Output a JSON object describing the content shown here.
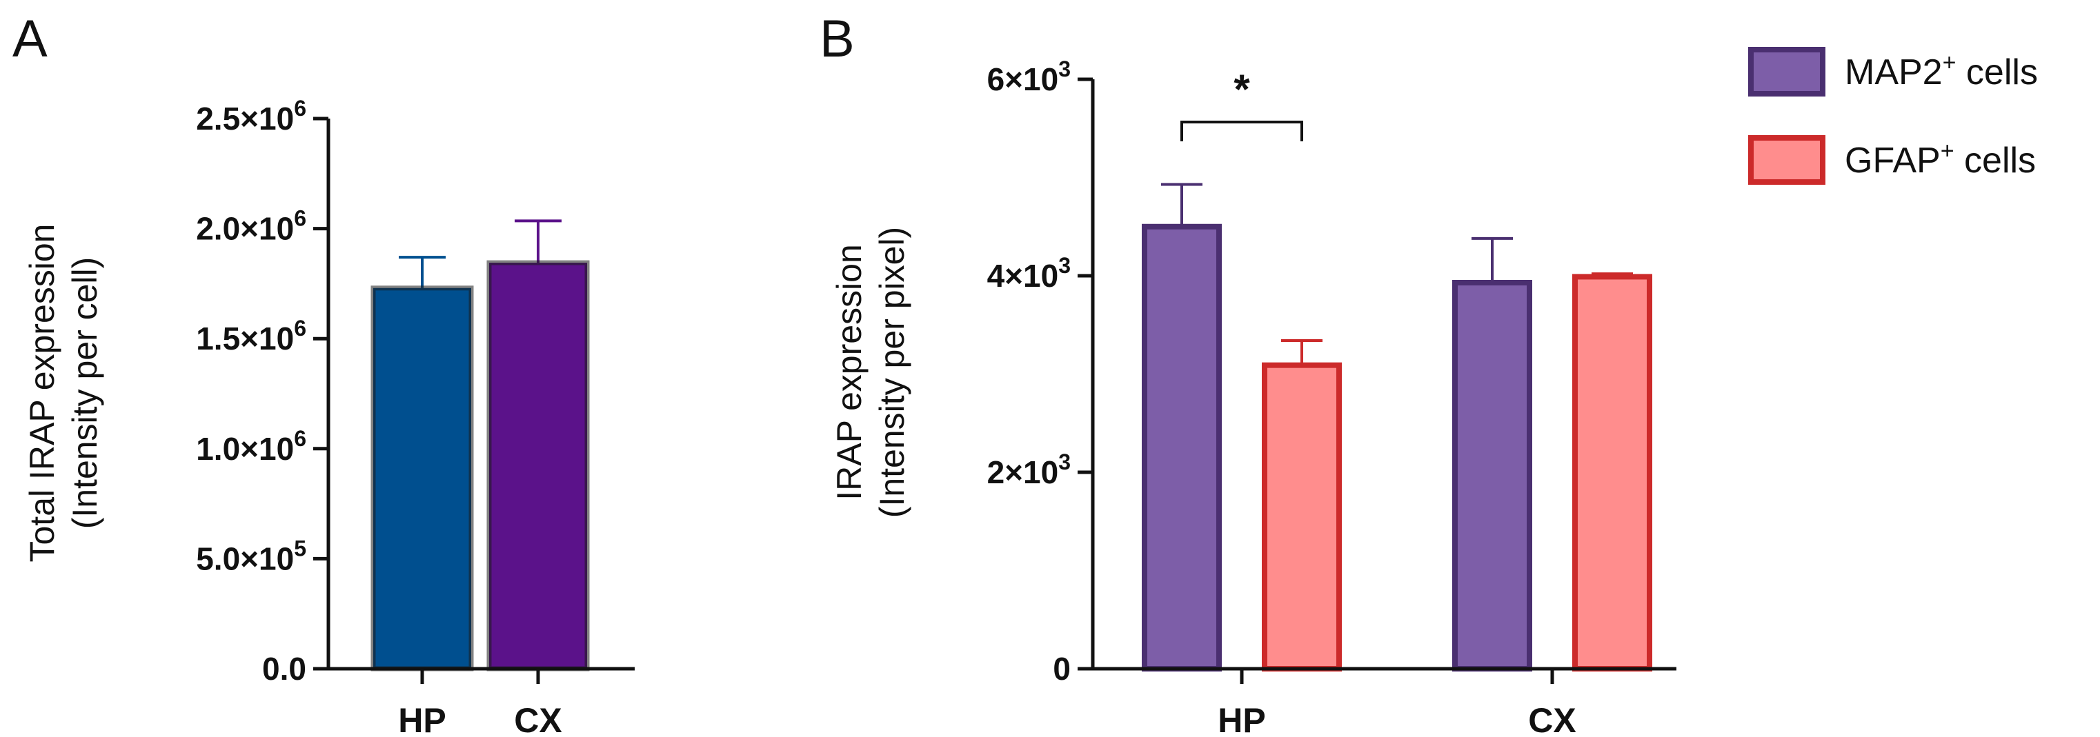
{
  "chart_data": [
    {
      "panel": "A",
      "type": "bar",
      "categories": [
        "HP",
        "CX"
      ],
      "values": [
        1730000,
        1845000
      ],
      "errors": [
        140000,
        190000
      ],
      "colors": [
        "#004f8f",
        "#5b128a"
      ],
      "ylabel": [
        "Total IRAP expression",
        "(Intensity per cell)"
      ],
      "ylim": [
        0,
        2500000
      ],
      "yticks": [
        {
          "value": 0,
          "label": "0.0"
        },
        {
          "value": 500000,
          "label": "5.0×10",
          "exp": "5"
        },
        {
          "value": 1000000,
          "label": "1.0×10",
          "exp": "6"
        },
        {
          "value": 1500000,
          "label": "1.5×10",
          "exp": "6"
        },
        {
          "value": 2000000,
          "label": "2.0×10",
          "exp": "6"
        },
        {
          "value": 2500000,
          "label": "2.5×10",
          "exp": "6"
        }
      ]
    },
    {
      "panel": "B",
      "type": "bar",
      "categories": [
        "HP",
        "CX"
      ],
      "series": [
        {
          "name": "MAP2",
          "name_sup": "+",
          "name_suffix": " cells",
          "values": [
            4500,
            3930
          ],
          "errors": [
            430,
            450
          ],
          "fill": "#7d5ea8",
          "stroke": "#4a2f70"
        },
        {
          "name": "GFAP",
          "name_sup": "+",
          "name_suffix": " cells",
          "values": [
            3090,
            3990
          ],
          "errors": [
            250,
            30
          ],
          "fill": "#ff8d8d",
          "stroke": "#cc2a2a"
        }
      ],
      "ylabel": [
        "IRAP expression",
        "(Intensity per pixel)"
      ],
      "ylim": [
        0,
        6000
      ],
      "yticks": [
        {
          "value": 0,
          "label": "0"
        },
        {
          "value": 2000,
          "label": "2×10",
          "exp": "3"
        },
        {
          "value": 4000,
          "label": "4×10",
          "exp": "3"
        },
        {
          "value": 6000,
          "label": "6×10",
          "exp": "3"
        }
      ],
      "annotations": [
        {
          "text": "*",
          "category": "HP",
          "between": [
            "MAP2",
            "GFAP"
          ]
        }
      ],
      "legend_position": "top-right"
    }
  ]
}
